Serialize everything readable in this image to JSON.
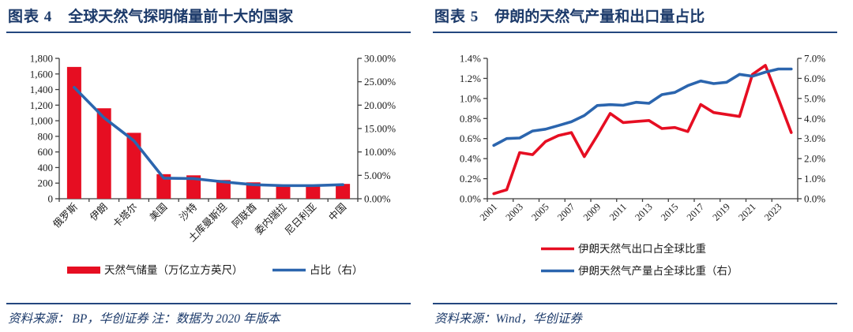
{
  "figures": [
    {
      "label": "图表 4",
      "title": "全球天然气探明储量前十大的国家",
      "source": "资料来源： BP，华创证券  注：数据为 2020 年版本"
    },
    {
      "label": "图表 5",
      "title": "伊朗的天然气产量和出口量占比",
      "source": "资料来源：Wind，华创证券"
    }
  ],
  "colors": {
    "red": "#e60e22",
    "blue": "#2b65ae",
    "navy": "#1c3a6a",
    "rule": "#24477f",
    "axis": "#3f3f3f",
    "label": "#1a1a1a"
  },
  "chart_data": [
    {
      "type": "bar",
      "title": "全球天然气探明储量前十大的国家",
      "categories": [
        "俄罗斯",
        "伊朗",
        "卡塔尔",
        "美国",
        "沙特",
        "土库曼斯坦",
        "阿联酋",
        "委内瑞拉",
        "尼日利亚",
        "中国"
      ],
      "series": [
        {
          "name": "天然气储量（万亿立方英尺）",
          "kind": "bar",
          "axis": "left",
          "color": "#e60e22",
          "values": [
            1690,
            1160,
            845,
            315,
            300,
            240,
            210,
            175,
            180,
            190
          ]
        },
        {
          "name": "占比（右）",
          "kind": "line",
          "axis": "right",
          "color": "#2b65ae",
          "values": [
            23.8,
            17.3,
            12.4,
            4.4,
            4.3,
            3.6,
            3.0,
            2.8,
            2.8,
            3.0
          ]
        }
      ],
      "left_axis": {
        "min": 0,
        "max": 1800,
        "step": 200,
        "format": "number"
      },
      "right_axis": {
        "min": 0,
        "max": 30,
        "step": 5,
        "format": "percent2"
      },
      "grid": false,
      "legend_position": "bottom"
    },
    {
      "type": "line",
      "title": "伊朗的天然气产量和出口量占比",
      "x": [
        2001,
        2002,
        2003,
        2004,
        2005,
        2006,
        2007,
        2008,
        2009,
        2010,
        2011,
        2012,
        2013,
        2014,
        2015,
        2016,
        2017,
        2018,
        2019,
        2020,
        2021,
        2022,
        2023,
        2024
      ],
      "x_label_every": 2,
      "series": [
        {
          "name": "伊朗天然气出口占全球比重",
          "axis": "left",
          "color": "#e60e22",
          "values": [
            0.05,
            0.09,
            0.46,
            0.44,
            0.57,
            0.63,
            0.66,
            0.42,
            0.63,
            0.85,
            0.76,
            0.77,
            0.78,
            0.7,
            0.71,
            0.67,
            0.94,
            0.86,
            0.84,
            0.82,
            1.24,
            1.33,
            1.0,
            0.66
          ]
        },
        {
          "name": "伊朗天然气产量占全球比重（右）",
          "axis": "right",
          "color": "#2b65ae",
          "values": [
            2.66,
            3.0,
            3.03,
            3.38,
            3.47,
            3.65,
            3.84,
            4.15,
            4.65,
            4.69,
            4.66,
            4.81,
            4.76,
            5.19,
            5.3,
            5.64,
            5.87,
            5.74,
            5.81,
            6.2,
            6.11,
            6.31,
            6.47,
            6.47
          ]
        }
      ],
      "left_axis": {
        "min": 0,
        "max": 1.4,
        "step": 0.2,
        "format": "percent1"
      },
      "right_axis": {
        "min": 0,
        "max": 7,
        "step": 1,
        "format": "percent1"
      },
      "grid": false,
      "legend_position": "bottom"
    }
  ]
}
